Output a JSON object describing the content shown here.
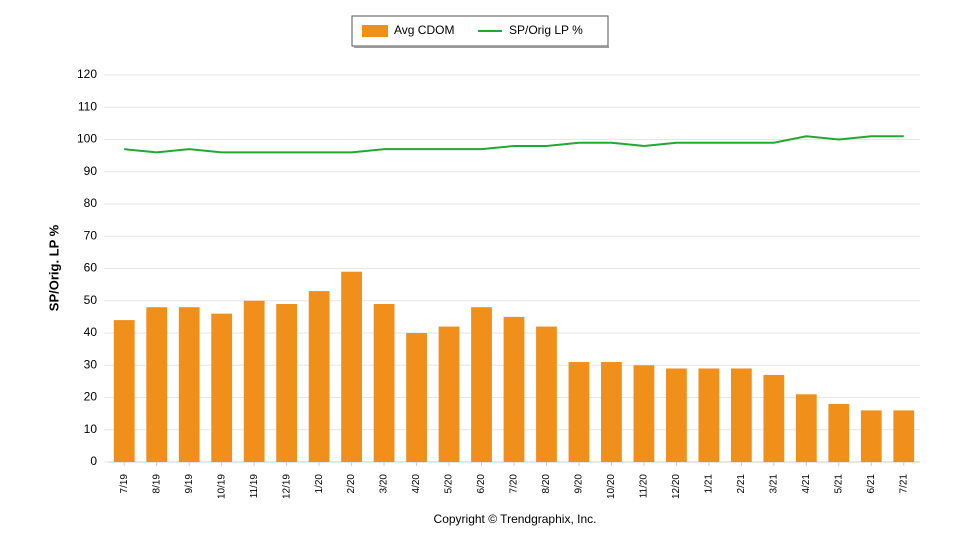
{
  "chart_data": {
    "type": "combo",
    "y_label": "SP/Orig. LP %",
    "footer": "Copyright © Trendgraphix, Inc.",
    "categories": [
      "7/19",
      "8/19",
      "9/19",
      "10/19",
      "11/19",
      "12/19",
      "1/20",
      "2/20",
      "3/20",
      "4/20",
      "5/20",
      "6/20",
      "7/20",
      "8/20",
      "9/20",
      "10/20",
      "11/20",
      "12/20",
      "1/21",
      "2/21",
      "3/21",
      "4/21",
      "5/21",
      "6/21",
      "7/21"
    ],
    "series": [
      {
        "name": "Avg CDOM",
        "type": "bar",
        "color": "#f0901a",
        "values": [
          44,
          48,
          48,
          46,
          50,
          49,
          53,
          59,
          49,
          40,
          42,
          48,
          45,
          42,
          31,
          31,
          30,
          29,
          29,
          29,
          27,
          21,
          18,
          16,
          16
        ]
      },
      {
        "name": "SP/Orig LP %",
        "type": "line",
        "color": "#22a832",
        "values": [
          97,
          96,
          97,
          96,
          96,
          96,
          96,
          96,
          97,
          97,
          97,
          97,
          98,
          98,
          99,
          99,
          98,
          99,
          99,
          99,
          99,
          101,
          100,
          101,
          101
        ]
      }
    ],
    "ylim": [
      0,
      120
    ],
    "yticks": [
      0,
      10,
      20,
      30,
      40,
      50,
      60,
      70,
      80,
      90,
      100,
      110,
      120
    ],
    "grid": true,
    "legend": "top"
  }
}
